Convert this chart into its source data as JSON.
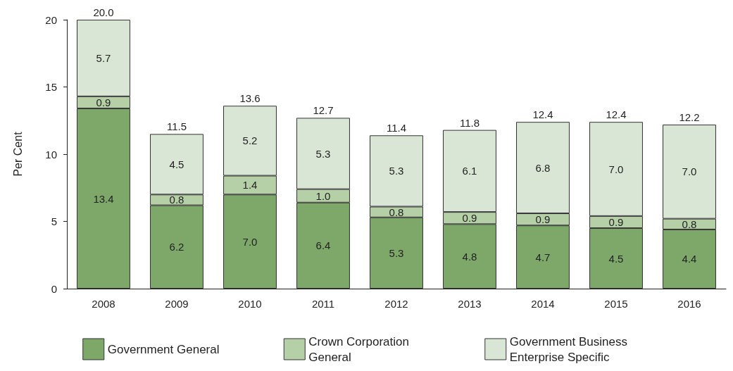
{
  "chart_data": {
    "type": "bar",
    "stacked": true,
    "ylabel": "Per Cent",
    "categories": [
      "2008",
      "2009",
      "2010",
      "2011",
      "2012",
      "2013",
      "2014",
      "2015",
      "2016"
    ],
    "series": [
      {
        "name": "Government General",
        "color": "#7da86a",
        "values": [
          13.4,
          6.2,
          7.0,
          6.4,
          5.3,
          4.8,
          4.7,
          4.5,
          4.4
        ],
        "value_labels": [
          "13.4",
          "6.2",
          "7.0",
          "6.4",
          "5.3",
          "4.8",
          "4.7",
          "4.5",
          "4.4"
        ]
      },
      {
        "name": "Crown Corporation General",
        "color": "#b5cfa6",
        "values": [
          0.9,
          0.8,
          1.4,
          1.0,
          0.8,
          0.9,
          0.9,
          0.9,
          0.8
        ],
        "value_labels": [
          "0.9",
          "0.8",
          "1.4",
          "1.0",
          "0.8",
          "0.9",
          "0.9",
          "0.9",
          "0.8"
        ]
      },
      {
        "name": "Government Business Enterprise Specific",
        "color": "#d9e6d5",
        "values": [
          5.7,
          4.5,
          5.2,
          5.3,
          5.3,
          6.1,
          6.8,
          7.0,
          7.0
        ],
        "value_labels": [
          "5.7",
          "4.5",
          "5.2",
          "5.3",
          "5.3",
          "6.1",
          "6.8",
          "7.0",
          "7.0"
        ]
      }
    ],
    "totals": [
      "20.0",
      "11.5",
      "13.6",
      "12.7",
      "11.4",
      "11.8",
      "12.4",
      "12.4",
      "12.2"
    ],
    "ylim": [
      0,
      20
    ],
    "yticks": [
      0,
      5,
      10,
      15,
      20
    ],
    "grid": false,
    "legend": "bottom"
  }
}
